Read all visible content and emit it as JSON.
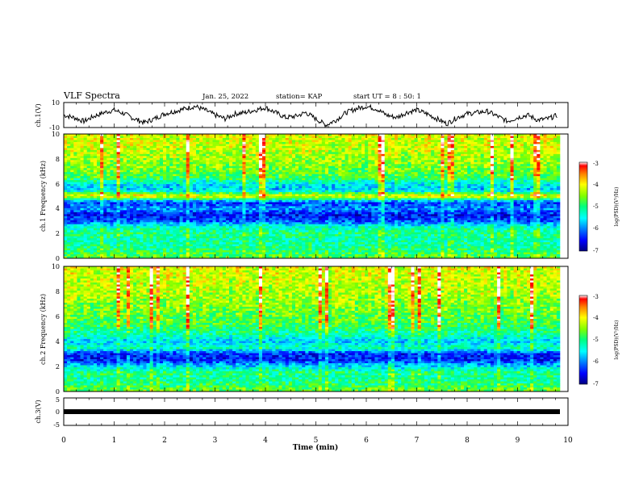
{
  "header": {
    "title": "VLF Spectra",
    "date": "Jan. 25, 2022",
    "station": "station= KAP",
    "start": "start UT = 8 : 50: 1"
  },
  "chart_data": [
    {
      "type": "line",
      "panel": "ch1-waveform",
      "ylabel": "ch.1(V)",
      "ylim": [
        -10,
        10
      ],
      "yticks": [
        "10",
        "-10"
      ],
      "xlim": [
        0,
        10
      ],
      "series": [
        {
          "x": [
            0,
            0.2,
            0.4,
            0.6,
            0.8,
            1.0,
            1.2,
            1.4,
            1.6,
            1.8,
            2.0,
            2.2,
            2.4,
            2.6,
            2.8,
            3.0,
            3.2,
            3.4,
            3.6,
            3.8,
            4.0,
            4.2,
            4.4,
            4.6,
            4.8,
            5.0,
            5.2,
            5.4,
            5.6,
            5.8,
            6.0,
            6.2,
            6.4,
            6.6,
            6.8,
            7.0,
            7.2,
            7.4,
            7.6,
            7.8,
            8.0,
            8.2,
            8.4,
            8.6,
            8.8,
            9.0,
            9.2,
            9.4,
            9.6,
            9.8
          ],
          "values": [
            0,
            -2,
            -5,
            -1,
            2,
            4,
            1,
            -3,
            -6,
            -3,
            1,
            3,
            5,
            7,
            4,
            0,
            -3,
            1,
            2,
            4,
            6,
            2,
            -2,
            -1,
            2,
            -3,
            -8,
            -4,
            2,
            5,
            7,
            5,
            0,
            -2,
            2,
            4,
            1,
            -3,
            -7,
            -2,
            1,
            2,
            3,
            -1,
            -5,
            -2,
            0,
            -4,
            -3,
            0
          ]
        }
      ]
    },
    {
      "type": "heatmap",
      "panel": "ch1-spectrogram",
      "ylabel": "ch.1 Frequency (kHz)",
      "ylim": [
        0,
        10
      ],
      "yticks": [
        "0",
        "2",
        "4",
        "6",
        "8",
        "10"
      ],
      "xlim": [
        0,
        10
      ],
      "value_label": "log(PSD)(V²/Hz)",
      "zlim": [
        -7,
        -3
      ],
      "band_profile": {
        "freq_khz": [
          0,
          0.5,
          1,
          1.5,
          2,
          2.5,
          3,
          3.5,
          4,
          4.5,
          5,
          5.5,
          6,
          6.5,
          7,
          7.5,
          8,
          8.5,
          9,
          9.5,
          10
        ],
        "log_psd": [
          -4.6,
          -4.9,
          -5.1,
          -5.2,
          -5.0,
          -5.3,
          -6.2,
          -6.5,
          -5.9,
          -6.3,
          -3.9,
          -5.7,
          -5.5,
          -4.8,
          -4.6,
          -4.5,
          -4.4,
          -4.3,
          -4.2,
          -4.2,
          -4.1
        ]
      }
    },
    {
      "type": "heatmap",
      "panel": "ch2-spectrogram",
      "ylabel": "ch.2 Frequency (kHz)",
      "ylim": [
        0,
        10
      ],
      "yticks": [
        "0",
        "2",
        "4",
        "6",
        "8",
        "10"
      ],
      "xlim": [
        0,
        10
      ],
      "value_label": "log(PSD)(V²/Hz)",
      "zlim": [
        -7,
        -3
      ],
      "band_profile": {
        "freq_khz": [
          0,
          0.5,
          1,
          1.5,
          2,
          2.5,
          3,
          3.5,
          4,
          4.5,
          5,
          5.5,
          6,
          6.5,
          7,
          7.5,
          8,
          8.5,
          9,
          9.5,
          10
        ],
        "log_psd": [
          -4.6,
          -4.9,
          -5.2,
          -5.0,
          -5.6,
          -6.4,
          -6.4,
          -5.2,
          -5.7,
          -5.2,
          -5.0,
          -4.8,
          -4.7,
          -4.6,
          -4.5,
          -4.4,
          -4.3,
          -4.3,
          -4.2,
          -4.2,
          -4.1
        ]
      }
    },
    {
      "type": "line",
      "panel": "ch3-waveform",
      "ylabel": "ch.3(V)",
      "ylim": [
        -5,
        5
      ],
      "yticks": [
        "5",
        "0",
        "-5"
      ],
      "xlim": [
        0,
        10
      ],
      "xlabel": "Time (min)",
      "xticks": [
        "0",
        "1",
        "2",
        "3",
        "4",
        "5",
        "6",
        "7",
        "8",
        "9",
        "10"
      ],
      "series": [
        {
          "x": [
            0,
            9.8
          ],
          "values": [
            0,
            0
          ]
        }
      ]
    }
  ],
  "colorbars": [
    {
      "ticks": [
        "-3",
        "-4",
        "-5",
        "-6",
        "-7"
      ],
      "label": "log(PSD)(V²/Hz)"
    },
    {
      "ticks": [
        "-3",
        "-4",
        "-5",
        "-6",
        "-7"
      ],
      "label": "log(PSD)(V²/Hz)"
    }
  ],
  "colors": {
    "colormap": [
      "#000080",
      "#0000ff",
      "#0080ff",
      "#00ffff",
      "#00ff80",
      "#80ff00",
      "#ffff00",
      "#ff8000",
      "#ff0000",
      "#ffffff"
    ],
    "line": "#000000",
    "axes": "#000000"
  }
}
